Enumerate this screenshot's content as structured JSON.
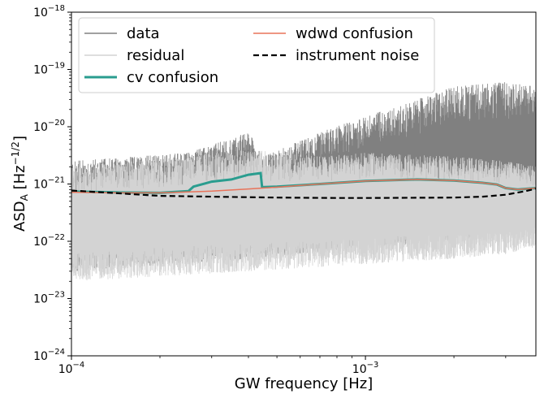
{
  "chart_data": {
    "type": "line",
    "xlabel": "GW frequency [Hz]",
    "ylabel": "ASD",
    "ylabel_subscript": "A",
    "ylabel_unit_open": " [Hz",
    "ylabel_unit_exp": "−1/2",
    "ylabel_unit_close": "]",
    "xscale": "log",
    "yscale": "log",
    "xlim": [
      0.0001,
      0.0038
    ],
    "ylim": [
      1e-24,
      1e-18
    ],
    "grid": false,
    "legend_placement": "top",
    "x_ticks": [
      {
        "base": "10",
        "exp": "−4",
        "value": 0.0001
      },
      {
        "base": "10",
        "exp": "−3",
        "value": 0.001
      }
    ],
    "y_ticks": [
      {
        "base": "10",
        "exp": "−24",
        "value": 1e-24
      },
      {
        "base": "10",
        "exp": "−23",
        "value": 1e-23
      },
      {
        "base": "10",
        "exp": "−22",
        "value": 1e-22
      },
      {
        "base": "10",
        "exp": "−21",
        "value": 1e-21
      },
      {
        "base": "10",
        "exp": "−20",
        "value": 1e-20
      },
      {
        "base": "10",
        "exp": "−19",
        "value": 1e-19
      },
      {
        "base": "10",
        "exp": "−18",
        "value": 1e-18
      }
    ],
    "series": [
      {
        "name": "data",
        "color": "#808080",
        "style": "noise",
        "envelope_upper": [
          [
            0.0001,
            2.5e-21
          ],
          [
            0.00025,
            3.5e-21
          ],
          [
            0.0004,
            8e-21
          ],
          [
            0.00045,
            3e-21
          ],
          [
            0.0007,
            8e-21
          ],
          [
            0.001,
            1.5e-20
          ],
          [
            0.0015,
            3e-20
          ],
          [
            0.002,
            5e-20
          ],
          [
            0.003,
            6e-20
          ],
          [
            0.0038,
            5e-20
          ]
        ],
        "envelope_lower": [
          [
            0.0001,
            3e-23
          ],
          [
            0.0004,
            5e-23
          ],
          [
            0.001,
            8e-23
          ],
          [
            0.002,
            1e-22
          ],
          [
            0.003,
            1.5e-22
          ],
          [
            0.0038,
            2e-22
          ]
        ]
      },
      {
        "name": "residual",
        "color": "#d3d3d3",
        "style": "noise",
        "envelope_upper": [
          [
            0.0001,
            2e-21
          ],
          [
            0.00025,
            3e-21
          ],
          [
            0.0004,
            4e-21
          ],
          [
            0.0007,
            3e-21
          ],
          [
            0.001,
            3.5e-21
          ],
          [
            0.002,
            3e-21
          ],
          [
            0.003,
            2.5e-21
          ],
          [
            0.0038,
            2e-21
          ]
        ],
        "envelope_lower": [
          [
            0.0001,
            2e-23
          ],
          [
            0.0004,
            3e-23
          ],
          [
            0.001,
            4e-23
          ],
          [
            0.002,
            5e-23
          ],
          [
            0.003,
            6e-23
          ],
          [
            0.0038,
            8e-23
          ]
        ]
      },
      {
        "name": "cv confusion",
        "color": "#2a9d8f",
        "points": [
          [
            0.0001,
            7.4e-22
          ],
          [
            0.00015,
            7.1e-22
          ],
          [
            0.0002,
            7e-22
          ],
          [
            0.00025,
            7.5e-22
          ],
          [
            0.00026,
            9e-22
          ],
          [
            0.0003,
            1.1e-21
          ],
          [
            0.00035,
            1.2e-21
          ],
          [
            0.0004,
            1.45e-21
          ],
          [
            0.00044,
            1.55e-21
          ],
          [
            0.000445,
            8.8e-22
          ],
          [
            0.0005,
            9e-22
          ],
          [
            0.0007,
            1e-21
          ],
          [
            0.001,
            1.13e-21
          ],
          [
            0.0015,
            1.2e-21
          ],
          [
            0.002,
            1.15e-21
          ],
          [
            0.0025,
            1.05e-21
          ],
          [
            0.0028,
            9.8e-22
          ],
          [
            0.003,
            8.5e-22
          ],
          [
            0.0033,
            8e-22
          ],
          [
            0.0038,
            8.5e-22
          ]
        ]
      },
      {
        "name": "wdwd confusion",
        "color": "#e8735a",
        "points": [
          [
            0.0001,
            7.2e-22
          ],
          [
            0.00015,
            7e-22
          ],
          [
            0.0002,
            7e-22
          ],
          [
            0.0003,
            7.5e-22
          ],
          [
            0.0004,
            8.2e-22
          ],
          [
            0.0005,
            8.8e-22
          ],
          [
            0.0007,
            1e-21
          ],
          [
            0.001,
            1.13e-21
          ],
          [
            0.0015,
            1.2e-21
          ],
          [
            0.002,
            1.15e-21
          ],
          [
            0.0025,
            1.05e-21
          ],
          [
            0.0028,
            9.8e-22
          ],
          [
            0.003,
            8.5e-22
          ],
          [
            0.0033,
            8e-22
          ],
          [
            0.0038,
            8.5e-22
          ]
        ]
      },
      {
        "name": "instrument noise",
        "color": "#000000",
        "dashed": true,
        "points": [
          [
            0.0001,
            7.7e-22
          ],
          [
            0.00015,
            6.8e-22
          ],
          [
            0.0002,
            6.2e-22
          ],
          [
            0.0003,
            6e-22
          ],
          [
            0.0005,
            5.8e-22
          ],
          [
            0.0008,
            5.7e-22
          ],
          [
            0.001,
            5.7e-22
          ],
          [
            0.0015,
            5.75e-22
          ],
          [
            0.002,
            5.8e-22
          ],
          [
            0.0025,
            6e-22
          ],
          [
            0.003,
            6.5e-22
          ],
          [
            0.0035,
            7.5e-22
          ],
          [
            0.0038,
            8.3e-22
          ]
        ]
      }
    ]
  }
}
